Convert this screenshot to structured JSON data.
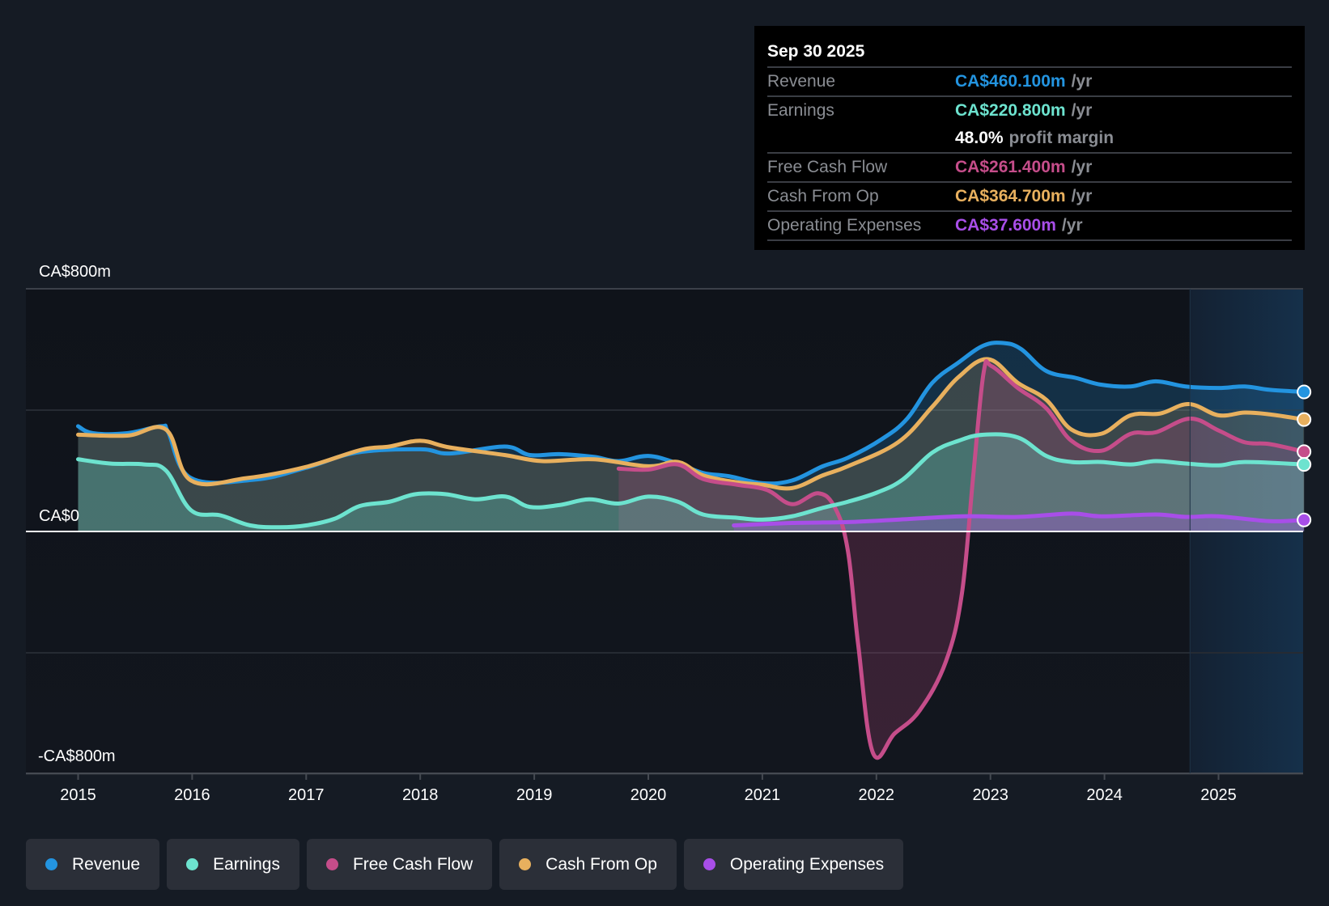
{
  "tooltip": {
    "date": "Sep 30 2025",
    "rows": [
      {
        "label": "Revenue",
        "value": "CA$460.100m",
        "unit": "/yr",
        "color": "#2394e0"
      },
      {
        "label": "Earnings",
        "value": "CA$220.800m",
        "unit": "/yr",
        "color": "#6de3cf"
      },
      {
        "label": "",
        "margin_value": "48.0%",
        "margin_label": "profit margin"
      },
      {
        "label": "Free Cash Flow",
        "value": "CA$261.400m",
        "unit": "/yr",
        "color": "#c54d8a"
      },
      {
        "label": "Cash From Op",
        "value": "CA$364.700m",
        "unit": "/yr",
        "color": "#e8b05e"
      },
      {
        "label": "Operating Expenses",
        "value": "CA$37.600m",
        "unit": "/yr",
        "color": "#a84ee8"
      }
    ]
  },
  "legend": [
    {
      "label": "Revenue",
      "color": "#2394e0"
    },
    {
      "label": "Earnings",
      "color": "#6de3cf"
    },
    {
      "label": "Free Cash Flow",
      "color": "#c54d8a"
    },
    {
      "label": "Cash From Op",
      "color": "#e8b05e"
    },
    {
      "label": "Operating Expenses",
      "color": "#a84ee8"
    }
  ],
  "chart_data": {
    "type": "area",
    "title": "",
    "xlabel": "",
    "ylabel": "",
    "unit": "CA$m",
    "xlim": [
      2014.55,
      2025.75
    ],
    "ylim": [
      -800,
      800
    ],
    "y_tick_labels": [
      {
        "value": 800,
        "label": "CA$800m"
      },
      {
        "value": 0,
        "label": "CA$0"
      },
      {
        "value": -800,
        "label": "-CA$800m"
      }
    ],
    "gridlines": [
      800,
      400,
      0,
      -400,
      -800
    ],
    "x_ticks": [
      2015,
      2016,
      2017,
      2018,
      2019,
      2020,
      2021,
      2022,
      2023,
      2024,
      2025
    ],
    "x_tick_labels": [
      "2015",
      "2016",
      "2017",
      "2018",
      "2019",
      "2020",
      "2021",
      "2022",
      "2023",
      "2024",
      "2025"
    ],
    "highlight_region_start": 2024.75,
    "series": [
      {
        "name": "Revenue",
        "color": "#2394e0",
        "x": [
          2015.0,
          2015.13,
          2015.43,
          2015.73,
          2015.79,
          2015.99,
          2016.55,
          2017.0,
          2017.44,
          2018.0,
          2018.26,
          2018.74,
          2018.96,
          2019.22,
          2019.52,
          2019.74,
          2020.0,
          2020.26,
          2020.48,
          2020.71,
          2021.0,
          2021.26,
          2021.53,
          2021.75,
          2022.05,
          2022.27,
          2022.49,
          2022.72,
          2022.94,
          2023.12,
          2023.27,
          2023.49,
          2023.75,
          2023.97,
          2024.23,
          2024.45,
          2024.71,
          2025.0,
          2025.23,
          2025.45,
          2025.75
        ],
        "y": [
          347,
          324,
          324,
          347,
          327,
          176,
          171,
          210,
          260,
          271,
          257,
          280,
          252,
          255,
          246,
          232,
          249,
          224,
          193,
          182,
          159,
          168,
          215,
          243,
          305,
          372,
          490,
          557,
          613,
          621,
          601,
          529,
          506,
          484,
          478,
          495,
          478,
          473,
          478,
          467,
          460
        ]
      },
      {
        "name": "Earnings",
        "color": "#6de3cf",
        "x": [
          2015.0,
          2015.28,
          2015.58,
          2015.77,
          2015.99,
          2016.25,
          2016.51,
          2016.77,
          2017.0,
          2017.25,
          2017.47,
          2017.73,
          2017.96,
          2018.22,
          2018.48,
          2018.75,
          2018.96,
          2019.22,
          2019.48,
          2019.74,
          2020.0,
          2020.26,
          2020.48,
          2020.78,
          2021.0,
          2021.26,
          2021.53,
          2021.75,
          2022.01,
          2022.23,
          2022.49,
          2022.72,
          2022.94,
          2023.24,
          2023.49,
          2023.71,
          2023.97,
          2024.23,
          2024.45,
          2024.71,
          2025.0,
          2025.23,
          2025.75
        ],
        "y": [
          238,
          224,
          221,
          201,
          70,
          53,
          20,
          14,
          20,
          42,
          84,
          98,
          123,
          123,
          106,
          115,
          81,
          87,
          106,
          92,
          115,
          98,
          56,
          45,
          39,
          50,
          78,
          98,
          129,
          171,
          260,
          299,
          319,
          310,
          249,
          229,
          229,
          221,
          232,
          224,
          218,
          229,
          221
        ]
      },
      {
        "name": "Free Cash Flow",
        "color": "#c54d8a",
        "x": [
          2019.74,
          2020.0,
          2020.26,
          2020.48,
          2020.78,
          2021.04,
          2021.26,
          2021.49,
          2021.64,
          2021.75,
          2021.84,
          2021.97,
          2022.16,
          2022.38,
          2022.61,
          2022.75,
          2022.85,
          2022.94,
          2023.01,
          2023.24,
          2023.49,
          2023.71,
          2023.97,
          2024.23,
          2024.45,
          2024.75,
          2025.0,
          2025.23,
          2025.45,
          2025.75
        ],
        "y": [
          207,
          204,
          221,
          173,
          154,
          137,
          90,
          126,
          76,
          -64,
          -372,
          -730,
          -666,
          -590,
          -428,
          -204,
          187,
          523,
          545,
          473,
          406,
          299,
          266,
          322,
          327,
          372,
          333,
          294,
          288,
          263
        ]
      },
      {
        "name": "Cash From Op",
        "color": "#e8b05e",
        "x": [
          2015.0,
          2015.43,
          2015.77,
          2015.99,
          2016.48,
          2017.0,
          2017.48,
          2017.73,
          2018.0,
          2018.26,
          2018.74,
          2019.07,
          2019.52,
          2020.0,
          2020.26,
          2020.48,
          2020.78,
          2021.0,
          2021.26,
          2021.53,
          2021.75,
          2022.19,
          2022.49,
          2022.72,
          2022.98,
          2023.24,
          2023.49,
          2023.71,
          2023.97,
          2024.23,
          2024.49,
          2024.74,
          2025.0,
          2025.23,
          2025.45,
          2025.75
        ],
        "y": [
          319,
          316,
          336,
          168,
          176,
          213,
          269,
          280,
          299,
          277,
          252,
          232,
          238,
          215,
          229,
          185,
          162,
          154,
          143,
          185,
          215,
          294,
          411,
          509,
          568,
          490,
          434,
          336,
          322,
          383,
          389,
          420,
          383,
          392,
          386,
          369
        ]
      },
      {
        "name": "Operating Expenses",
        "color": "#a84ee8",
        "x": [
          2020.75,
          2021.26,
          2021.75,
          2022.19,
          2022.75,
          2023.24,
          2023.71,
          2023.97,
          2024.45,
          2024.71,
          2025.0,
          2025.45,
          2025.75
        ],
        "y": [
          20,
          28,
          31,
          39,
          50,
          48,
          59,
          50,
          56,
          48,
          50,
          34,
          38
        ]
      }
    ]
  }
}
